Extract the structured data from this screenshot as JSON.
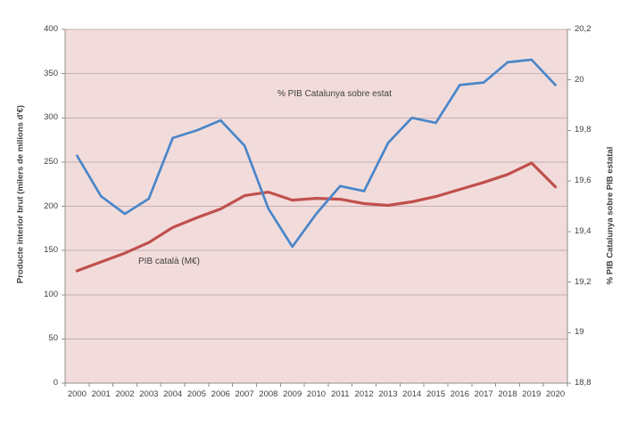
{
  "chart_data": {
    "type": "line",
    "x": [
      2000,
      2001,
      2002,
      2003,
      2004,
      2005,
      2006,
      2007,
      2008,
      2009,
      2010,
      2011,
      2012,
      2013,
      2014,
      2015,
      2016,
      2017,
      2018,
      2019,
      2020
    ],
    "x_tick_labels": [
      "2000",
      "2001",
      "2002",
      "2003",
      "2004",
      "2005",
      "2006",
      "2007",
      "2008",
      "2009",
      "2010",
      "2011",
      "2012",
      "2013",
      "2014",
      "2015",
      "2016",
      "2017",
      "2018",
      "2019",
      "2020"
    ],
    "series": [
      {
        "name": "PIB català (M€)",
        "axis": "left",
        "color": "#c0504d",
        "values": [
          127,
          137,
          147,
          159,
          176,
          187,
          197,
          212,
          216,
          207,
          209,
          208,
          203,
          201,
          205,
          211,
          219,
          227,
          236,
          249,
          222
        ]
      },
      {
        "name": "% PIB Catalunya sobre estat",
        "axis": "right",
        "color": "#4a86c9",
        "values": [
          19.7,
          19.54,
          19.47,
          19.53,
          19.77,
          19.8,
          19.84,
          19.74,
          19.49,
          19.34,
          19.47,
          19.58,
          19.56,
          19.75,
          19.85,
          19.83,
          19.98,
          19.99,
          20.07,
          20.08,
          19.98
        ]
      }
    ],
    "left_axis": {
      "label": "Producte interior brut (milers de milions d'€)",
      "min": 0,
      "max": 400,
      "tick_values": [
        400,
        350,
        300,
        250,
        200,
        150,
        100,
        50,
        0
      ],
      "tick_labels": [
        "400",
        "350",
        "300",
        "250",
        "200",
        "150",
        "100",
        "50",
        "0"
      ]
    },
    "right_axis": {
      "label": "% PIB Catalunya sobre PIB estatal",
      "min": 18.8,
      "max": 20.2,
      "tick_values": [
        20.2,
        20,
        19.8,
        19.6,
        19.4,
        19.2,
        19,
        18.8
      ],
      "tick_labels": [
        "20,2",
        "20",
        "19,8",
        "19,6",
        "19,4",
        "19,2",
        "19",
        "18,8"
      ]
    },
    "grid": "horizontal",
    "legend": "inline-text-labels",
    "plot_background": "#f2dcdb",
    "gridline_color": "#c2b1b3",
    "axis_line_color": "#8f8f8f"
  }
}
